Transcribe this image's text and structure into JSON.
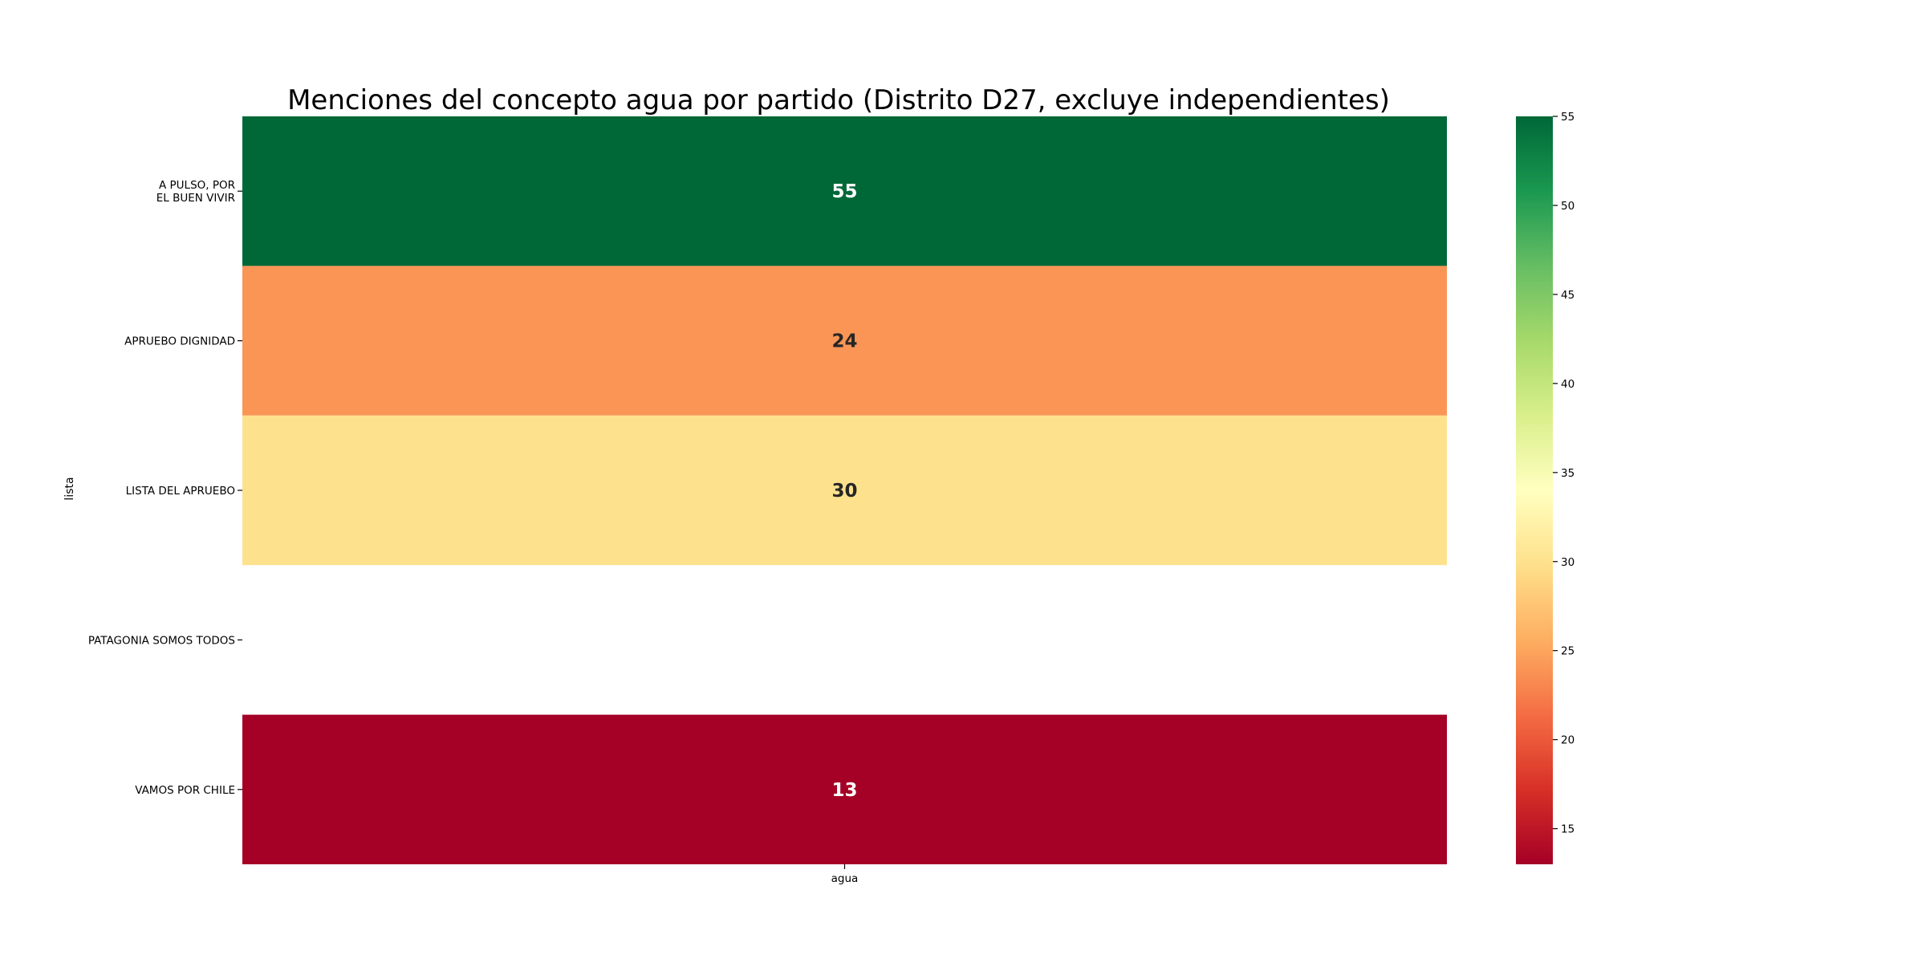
{
  "chart_data": {
    "type": "heatmap",
    "title": "Menciones del concepto agua por partido (Distrito D27, excluye independientes)",
    "xlabel": "",
    "ylabel": "lista",
    "x_categories": [
      "agua"
    ],
    "y_categories": [
      [
        "A PULSO, POR",
        "EL BUEN VIVIR"
      ],
      [
        "APRUEBO DIGNIDAD"
      ],
      [
        "LISTA DEL APRUEBO"
      ],
      [
        "PATAGONIA SOMOS TODOS"
      ],
      [
        "VAMOS POR CHILE"
      ]
    ],
    "values": [
      [
        55
      ],
      [
        24
      ],
      [
        30
      ],
      [
        null
      ],
      [
        13
      ]
    ],
    "annotations": [
      "55",
      "24",
      "30",
      "",
      "13"
    ],
    "colormap": "RdYlGn",
    "colorbar": {
      "range": [
        13,
        55
      ],
      "ticks": [
        15,
        20,
        25,
        30,
        35,
        40,
        45,
        50,
        55
      ],
      "tick_labels": [
        "15",
        "20",
        "25",
        "30",
        "35",
        "40",
        "45",
        "50",
        "55"
      ]
    }
  }
}
